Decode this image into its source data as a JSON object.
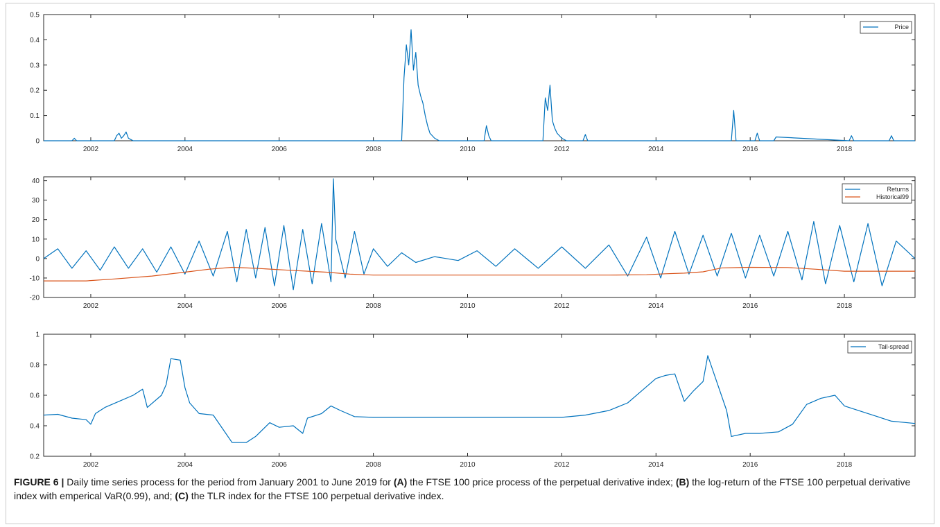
{
  "chart_data": [
    {
      "type": "line",
      "panel": "A",
      "xlim": [
        2001.0,
        2019.5
      ],
      "ylim": [
        0,
        0.5
      ],
      "yticks": [
        0,
        0.1,
        0.2,
        0.3,
        0.4,
        0.5
      ],
      "ytick_labels": [
        "0",
        "0.1",
        "0.2",
        "0.3",
        "0.4",
        "0.5"
      ],
      "xticks": [
        2002,
        2004,
        2006,
        2008,
        2010,
        2012,
        2014,
        2016,
        2018
      ],
      "xtick_labels": [
        "2002",
        "2004",
        "2006",
        "2008",
        "2010",
        "2012",
        "2014",
        "2016",
        "2018"
      ],
      "legend_position": "top-right",
      "series": [
        {
          "name": "Price",
          "color": "#0072BD",
          "x": [
            2001.0,
            2001.6,
            2001.65,
            2001.7,
            2002.5,
            2002.55,
            2002.6,
            2002.65,
            2002.7,
            2002.75,
            2002.8,
            2002.85,
            2002.9,
            2003.0,
            2008.6,
            2008.65,
            2008.7,
            2008.75,
            2008.8,
            2008.85,
            2008.9,
            2008.95,
            2009.0,
            2009.05,
            2009.1,
            2009.15,
            2009.2,
            2009.3,
            2009.4,
            2009.5,
            2010.35,
            2010.4,
            2010.45,
            2010.5,
            2011.6,
            2011.65,
            2011.7,
            2011.75,
            2011.8,
            2011.85,
            2011.9,
            2012.0,
            2012.1,
            2012.45,
            2012.5,
            2012.55,
            2015.6,
            2015.65,
            2015.7,
            2016.1,
            2016.15,
            2016.2,
            2016.5,
            2016.55,
            2018.1,
            2018.15,
            2018.2,
            2018.95,
            2019.0,
            2019.05,
            2019.5
          ],
          "y": [
            0,
            0,
            0.01,
            0,
            0,
            0.02,
            0.03,
            0.01,
            0.02,
            0.035,
            0.01,
            0.005,
            0,
            0,
            0,
            0.25,
            0.38,
            0.3,
            0.44,
            0.28,
            0.35,
            0.22,
            0.18,
            0.15,
            0.1,
            0.06,
            0.03,
            0.01,
            0,
            0,
            0,
            0.06,
            0.02,
            0,
            0,
            0.17,
            0.12,
            0.22,
            0.08,
            0.05,
            0.03,
            0.01,
            0,
            0,
            0.025,
            0,
            0,
            0.12,
            0,
            0,
            0.03,
            0,
            0,
            0.015,
            0,
            0.02,
            0,
            0,
            0.02,
            0,
            0
          ]
        }
      ]
    },
    {
      "type": "line",
      "panel": "B",
      "xlim": [
        2001.0,
        2019.5
      ],
      "ylim": [
        -20,
        42
      ],
      "yticks": [
        -20,
        -10,
        0,
        10,
        20,
        30,
        40
      ],
      "ytick_labels": [
        "-20",
        "-10",
        "0",
        "10",
        "20",
        "30",
        "40"
      ],
      "xticks": [
        2002,
        2004,
        2006,
        2008,
        2010,
        2012,
        2014,
        2016,
        2018
      ],
      "xtick_labels": [
        "2002",
        "2004",
        "2006",
        "2008",
        "2010",
        "2012",
        "2014",
        "2016",
        "2018"
      ],
      "legend_position": "top-right",
      "series": [
        {
          "name": "Returns",
          "color": "#0072BD",
          "x": [
            2001.0,
            2001.3,
            2001.6,
            2001.9,
            2002.2,
            2002.5,
            2002.8,
            2003.1,
            2003.4,
            2003.7,
            2004.0,
            2004.3,
            2004.6,
            2004.9,
            2005.1,
            2005.3,
            2005.5,
            2005.7,
            2005.9,
            2006.1,
            2006.3,
            2006.5,
            2006.7,
            2006.9,
            2007.1,
            2007.15,
            2007.2,
            2007.4,
            2007.6,
            2007.8,
            2008.0,
            2008.3,
            2008.6,
            2008.9,
            2009.3,
            2009.8,
            2010.2,
            2010.6,
            2011.0,
            2011.5,
            2012.0,
            2012.5,
            2013.0,
            2013.4,
            2013.8,
            2014.1,
            2014.4,
            2014.7,
            2015.0,
            2015.3,
            2015.6,
            2015.9,
            2016.2,
            2016.5,
            2016.8,
            2017.1,
            2017.35,
            2017.6,
            2017.9,
            2018.2,
            2018.5,
            2018.8,
            2019.1,
            2019.5
          ],
          "y": [
            0,
            5,
            -5,
            4,
            -6,
            6,
            -5,
            5,
            -7,
            6,
            -8,
            9,
            -9,
            14,
            -12,
            15,
            -10,
            16,
            -14,
            17,
            -16,
            15,
            -13,
            18,
            -12,
            41,
            10,
            -10,
            14,
            -8,
            5,
            -4,
            3,
            -2,
            1,
            -1,
            4,
            -4,
            5,
            -5,
            6,
            -5,
            7,
            -9,
            11,
            -10,
            14,
            -8,
            12,
            -9,
            13,
            -10,
            12,
            -9,
            14,
            -11,
            19,
            -13,
            17,
            -12,
            18,
            -14,
            9,
            0
          ]
        },
        {
          "name": "Historical99",
          "color": "#D95319",
          "x": [
            2001.0,
            2001.9,
            2002.5,
            2003.3,
            2004.0,
            2004.5,
            2005.0,
            2005.5,
            2006.2,
            2007.0,
            2007.5,
            2008.0,
            2009.0,
            2010.0,
            2011.0,
            2012.0,
            2013.0,
            2013.8,
            2014.2,
            2014.6,
            2015.0,
            2015.4,
            2016.0,
            2016.8,
            2017.4,
            2018.0,
            2019.5
          ],
          "y": [
            -11.5,
            -11.5,
            -10.5,
            -9.0,
            -7.0,
            -5.5,
            -4.5,
            -5.0,
            -6.0,
            -7.0,
            -8.0,
            -8.5,
            -8.5,
            -8.5,
            -8.5,
            -8.5,
            -8.5,
            -8.3,
            -7.8,
            -7.5,
            -6.8,
            -4.8,
            -4.5,
            -4.6,
            -5.5,
            -6.5,
            -6.5
          ]
        }
      ]
    },
    {
      "type": "line",
      "panel": "C",
      "xlim": [
        2001.0,
        2019.5
      ],
      "ylim": [
        0.2,
        1.0
      ],
      "yticks": [
        0.2,
        0.4,
        0.6,
        0.8,
        1.0
      ],
      "ytick_labels": [
        "0.2",
        "0.4",
        "0.6",
        "0.8",
        "1"
      ],
      "xticks": [
        2002,
        2004,
        2006,
        2008,
        2010,
        2012,
        2014,
        2016,
        2018
      ],
      "xtick_labels": [
        "2002",
        "2004",
        "2006",
        "2008",
        "2010",
        "2012",
        "2014",
        "2016",
        "2018"
      ],
      "legend_position": "top-right",
      "series": [
        {
          "name": "Tail-spread",
          "color": "#0072BD",
          "x": [
            2001.0,
            2001.3,
            2001.6,
            2001.9,
            2002.0,
            2002.1,
            2002.3,
            2002.6,
            2002.9,
            2003.1,
            2003.2,
            2003.5,
            2003.6,
            2003.7,
            2003.9,
            2004.0,
            2004.1,
            2004.3,
            2004.6,
            2004.8,
            2005.0,
            2005.3,
            2005.5,
            2005.8,
            2006.0,
            2006.3,
            2006.5,
            2006.6,
            2006.9,
            2007.1,
            2007.3,
            2007.6,
            2008.0,
            2009.0,
            2010.0,
            2011.0,
            2012.0,
            2012.5,
            2013.0,
            2013.4,
            2013.7,
            2014.0,
            2014.2,
            2014.4,
            2014.6,
            2014.8,
            2015.0,
            2015.1,
            2015.3,
            2015.5,
            2015.6,
            2015.9,
            2016.0,
            2016.2,
            2016.6,
            2016.9,
            2017.2,
            2017.5,
            2017.8,
            2018.0,
            2018.5,
            2019.0,
            2019.5
          ],
          "y": [
            0.47,
            0.475,
            0.45,
            0.44,
            0.41,
            0.48,
            0.52,
            0.56,
            0.6,
            0.64,
            0.52,
            0.6,
            0.67,
            0.84,
            0.83,
            0.65,
            0.55,
            0.48,
            0.47,
            0.38,
            0.29,
            0.29,
            0.33,
            0.42,
            0.39,
            0.4,
            0.35,
            0.45,
            0.48,
            0.53,
            0.5,
            0.46,
            0.455,
            0.455,
            0.455,
            0.455,
            0.455,
            0.47,
            0.5,
            0.55,
            0.63,
            0.71,
            0.73,
            0.74,
            0.56,
            0.63,
            0.69,
            0.86,
            0.68,
            0.5,
            0.33,
            0.35,
            0.35,
            0.35,
            0.36,
            0.41,
            0.54,
            0.58,
            0.6,
            0.53,
            0.48,
            0.43,
            0.415
          ]
        }
      ]
    }
  ],
  "caption": {
    "figure_label": "FIGURE 6 |",
    "text_1": " Daily time series process for the period from January 2001 to June 2019 for ",
    "label_a": "(A)",
    "text_2": " the FTSE 100 price process of the perpetual derivative index; ",
    "label_b": "(B)",
    "text_3": " the log-return of the FTSE 100 perpetual derivative index with emperical VaR(0.99), and; ",
    "label_c": "(C)",
    "text_4": " the TLR index for the FTSE 100 perpetual derivative index."
  }
}
